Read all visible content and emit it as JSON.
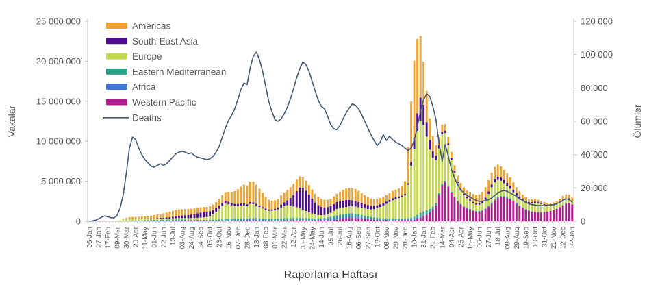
{
  "chart_data": {
    "type": "bar",
    "subtype": "stacked-weekly-bars-with-deaths-line-overlay",
    "title": "",
    "xlabel": "Raporlama Haftası",
    "ylabel_left": "Vakalar",
    "ylabel_right": "Ölümler",
    "x_resolution": "weekly",
    "week_count": 157,
    "x_first_week": "06-Jan-2020",
    "x_last_week": "02-Jan-2023",
    "x_tick_every_n_weeks": 3,
    "x_tick_labels": [
      "06-Jan",
      "27-Jan",
      "17-Feb",
      "09-Mar",
      "30-Mar",
      "20-Apr",
      "11-May",
      "01-Jun",
      "22-Jun",
      "13-Jul",
      "03-Aug",
      "24-Aug",
      "14-Sep",
      "05-Oct",
      "26-Oct",
      "16-Nov",
      "07-Dec",
      "28-Dec",
      "18-Jan",
      "08-Feb",
      "01-Mar",
      "22-Mar",
      "12-Apr",
      "03-May",
      "24-May",
      "14-Jun",
      "05-Jul",
      "26-Jul",
      "16-Aug",
      "06-Sep",
      "27-Sep",
      "18-Oct",
      "08-Nov",
      "29-Nov",
      "20-Dec",
      "10-Jan",
      "31-Jan",
      "21-Feb",
      "14-Mar",
      "04-Apr",
      "25-Apr",
      "16-May",
      "06-Jun",
      "27-Jun",
      "18-Jul",
      "08-Aug",
      "29-Aug",
      "19-Sep",
      "10-Oct",
      "31-Oct",
      "21-Nov",
      "12-Dec",
      "02-Jan"
    ],
    "y_left": {
      "min": 0,
      "max": 25000000,
      "tick_step": 5000000,
      "tick_labels": [
        "0",
        "5 000 000",
        "10 000 000",
        "15 000 000",
        "20 000 000",
        "25 000 000"
      ]
    },
    "y_right": {
      "min": 0,
      "max": 120000,
      "tick_step": 20000,
      "tick_labels": [
        "0",
        "20 000",
        "40 000",
        "60 000",
        "80 000",
        "100 000",
        "120 000"
      ]
    },
    "cases_unit": "millions of weekly reported cases",
    "deaths_unit": "thousands of weekly reported deaths",
    "stack_order_bottom_to_top": [
      "Western Pacific",
      "Africa",
      "Eastern Mediterranean",
      "Europe",
      "South-East Asia",
      "Americas"
    ],
    "grid": "off",
    "colors": {
      "axis_line": "#C0C0C0",
      "tick_text": "#595959"
    },
    "series": [
      {
        "name": "Americas",
        "color": "#F0A230",
        "values": [
          0,
          0,
          0,
          0.001,
          0.001,
          0.001,
          0.001,
          0.001,
          0.002,
          0.005,
          0.02,
          0.08,
          0.13,
          0.2,
          0.23,
          0.25,
          0.27,
          0.28,
          0.3,
          0.33,
          0.36,
          0.4,
          0.45,
          0.5,
          0.55,
          0.6,
          0.68,
          0.75,
          0.8,
          0.82,
          0.8,
          0.78,
          0.74,
          0.72,
          0.7,
          0.68,
          0.66,
          0.65,
          0.65,
          0.66,
          0.7,
          0.75,
          0.85,
          0.95,
          1.1,
          1.25,
          1.4,
          1.6,
          1.85,
          2.1,
          2.35,
          2.35,
          2.55,
          2.6,
          2.4,
          2.1,
          1.8,
          1.45,
          1.2,
          1.1,
          1.05,
          1.05,
          1.15,
          1.2,
          1.3,
          1.35,
          1.4,
          1.45,
          1.4,
          1.35,
          1.25,
          1.2,
          1.15,
          1.1,
          1.05,
          1.0,
          0.95,
          0.9,
          0.9,
          0.95,
          1.05,
          1.2,
          1.35,
          1.45,
          1.5,
          1.55,
          1.5,
          1.4,
          1.25,
          1.1,
          1.0,
          0.9,
          0.85,
          0.8,
          0.78,
          0.78,
          0.8,
          0.85,
          0.9,
          0.95,
          1.0,
          1.15,
          1.6,
          4.5,
          7.6,
          9.7,
          9.3,
          7.7,
          5.4,
          3.9,
          2.7,
          1.9,
          1.3,
          1.0,
          0.9,
          0.85,
          0.8,
          0.75,
          0.72,
          0.72,
          0.75,
          0.8,
          0.85,
          0.95,
          1.0,
          1.05,
          1.1,
          1.2,
          1.3,
          1.4,
          1.5,
          1.55,
          1.5,
          1.4,
          1.3,
          1.2,
          1.05,
          0.9,
          0.75,
          0.65,
          0.55,
          0.45,
          0.4,
          0.35,
          0.33,
          0.3,
          0.28,
          0.27,
          0.27,
          0.28,
          0.3,
          0.33,
          0.38,
          0.45,
          0.5,
          0.45,
          0.4
        ]
      },
      {
        "name": "South-East Asia",
        "color": "#500C8F",
        "values": [
          0,
          0,
          0,
          0,
          0,
          0,
          0,
          0,
          0,
          0,
          0,
          0.005,
          0.01,
          0.015,
          0.02,
          0.03,
          0.04,
          0.05,
          0.06,
          0.07,
          0.08,
          0.09,
          0.1,
          0.12,
          0.13,
          0.15,
          0.17,
          0.2,
          0.23,
          0.27,
          0.32,
          0.36,
          0.4,
          0.45,
          0.5,
          0.57,
          0.62,
          0.63,
          0.6,
          0.56,
          0.5,
          0.45,
          0.4,
          0.37,
          0.35,
          0.32,
          0.3,
          0.28,
          0.26,
          0.25,
          0.24,
          0.23,
          0.22,
          0.21,
          0.2,
          0.19,
          0.18,
          0.17,
          0.17,
          0.18,
          0.2,
          0.24,
          0.35,
          0.45,
          0.62,
          0.95,
          1.4,
          2.0,
          2.6,
          2.75,
          2.55,
          2.2,
          1.85,
          1.5,
          1.25,
          1.05,
          0.95,
          0.9,
          0.85,
          0.85,
          0.85,
          0.85,
          0.85,
          0.85,
          0.8,
          0.75,
          0.7,
          0.65,
          0.6,
          0.55,
          0.5,
          0.45,
          0.4,
          0.37,
          0.34,
          0.31,
          0.28,
          0.26,
          0.24,
          0.22,
          0.2,
          0.18,
          0.17,
          0.2,
          0.45,
          1.3,
          2.2,
          2.9,
          2.5,
          1.8,
          1.2,
          0.8,
          0.55,
          0.4,
          0.3,
          0.25,
          0.22,
          0.2,
          0.18,
          0.17,
          0.16,
          0.15,
          0.15,
          0.14,
          0.14,
          0.15,
          0.17,
          0.2,
          0.25,
          0.3,
          0.35,
          0.38,
          0.4,
          0.4,
          0.4,
          0.38,
          0.35,
          0.32,
          0.3,
          0.28,
          0.25,
          0.22,
          0.2,
          0.18,
          0.16,
          0.14,
          0.12,
          0.1,
          0.09,
          0.08,
          0.07,
          0.06,
          0.05,
          0.05,
          0.04,
          0.04,
          0.03
        ]
      },
      {
        "name": "Europe",
        "color": "#C2D64F",
        "values": [
          0,
          0,
          0,
          0,
          0,
          0,
          0,
          0,
          0.01,
          0.04,
          0.08,
          0.18,
          0.22,
          0.25,
          0.22,
          0.2,
          0.18,
          0.16,
          0.15,
          0.14,
          0.13,
          0.12,
          0.12,
          0.12,
          0.12,
          0.13,
          0.13,
          0.14,
          0.15,
          0.16,
          0.17,
          0.18,
          0.19,
          0.2,
          0.22,
          0.25,
          0.28,
          0.32,
          0.36,
          0.5,
          0.7,
          1.0,
          1.35,
          1.7,
          1.95,
          1.85,
          1.7,
          1.6,
          1.6,
          1.65,
          1.65,
          1.55,
          1.8,
          1.75,
          1.6,
          1.45,
          1.3,
          1.15,
          1.05,
          1.05,
          1.1,
          1.2,
          1.4,
          1.55,
          1.6,
          1.55,
          1.45,
          1.35,
          1.2,
          1.05,
          0.9,
          0.75,
          0.6,
          0.5,
          0.42,
          0.38,
          0.37,
          0.4,
          0.5,
          0.65,
          0.8,
          0.85,
          0.85,
          0.85,
          0.85,
          0.88,
          0.9,
          0.9,
          0.9,
          0.9,
          0.92,
          0.95,
          1.05,
          1.2,
          1.4,
          1.6,
          1.85,
          2.1,
          2.35,
          2.5,
          2.6,
          2.7,
          2.9,
          4.2,
          6.5,
          8.5,
          10.5,
          11.5,
          10.8,
          9.2,
          7.4,
          6.1,
          5.4,
          5.6,
          6.2,
          6.0,
          5.1,
          4.0,
          3.0,
          2.2,
          1.7,
          1.4,
          1.2,
          1.05,
          0.9,
          0.8,
          0.8,
          0.9,
          1.1,
          1.5,
          1.9,
          2.1,
          2.1,
          1.9,
          1.6,
          1.4,
          1.2,
          1.0,
          0.9,
          0.85,
          0.8,
          0.8,
          0.85,
          0.95,
          1.1,
          1.1,
          1.0,
          0.85,
          0.7,
          0.6,
          0.55,
          0.55,
          0.6,
          0.65,
          0.6,
          0.5,
          0.4
        ]
      },
      {
        "name": "Eastern Mediterranean",
        "color": "#29A385",
        "values": [
          0,
          0,
          0,
          0,
          0,
          0,
          0,
          0,
          0.005,
          0.01,
          0.015,
          0.02,
          0.03,
          0.04,
          0.05,
          0.06,
          0.07,
          0.08,
          0.09,
          0.1,
          0.11,
          0.12,
          0.13,
          0.13,
          0.13,
          0.12,
          0.11,
          0.1,
          0.09,
          0.09,
          0.09,
          0.09,
          0.09,
          0.1,
          0.1,
          0.11,
          0.12,
          0.12,
          0.12,
          0.12,
          0.13,
          0.14,
          0.15,
          0.16,
          0.17,
          0.18,
          0.19,
          0.18,
          0.17,
          0.16,
          0.15,
          0.14,
          0.14,
          0.14,
          0.14,
          0.13,
          0.13,
          0.13,
          0.14,
          0.15,
          0.17,
          0.19,
          0.22,
          0.26,
          0.28,
          0.29,
          0.29,
          0.28,
          0.27,
          0.25,
          0.23,
          0.21,
          0.19,
          0.17,
          0.16,
          0.15,
          0.15,
          0.16,
          0.18,
          0.21,
          0.25,
          0.29,
          0.32,
          0.35,
          0.37,
          0.36,
          0.34,
          0.32,
          0.3,
          0.28,
          0.26,
          0.24,
          0.22,
          0.2,
          0.18,
          0.17,
          0.16,
          0.15,
          0.14,
          0.13,
          0.12,
          0.11,
          0.1,
          0.1,
          0.12,
          0.2,
          0.35,
          0.5,
          0.55,
          0.5,
          0.4,
          0.3,
          0.22,
          0.17,
          0.14,
          0.12,
          0.1,
          0.08,
          0.07,
          0.06,
          0.05,
          0.04,
          0.04,
          0.04,
          0.04,
          0.04,
          0.04,
          0.05,
          0.06,
          0.08,
          0.1,
          0.12,
          0.13,
          0.13,
          0.12,
          0.11,
          0.1,
          0.09,
          0.08,
          0.07,
          0.06,
          0.05,
          0.04,
          0.04,
          0.03,
          0.03,
          0.03,
          0.03,
          0.03,
          0.03,
          0.03,
          0.03,
          0.03,
          0.03,
          0.03,
          0.02,
          0.02
        ]
      },
      {
        "name": "Africa",
        "color": "#3E75D6",
        "values": [
          0,
          0,
          0,
          0,
          0,
          0,
          0,
          0,
          0,
          0,
          0,
          0.005,
          0.005,
          0.007,
          0.01,
          0.012,
          0.015,
          0.018,
          0.02,
          0.025,
          0.03,
          0.035,
          0.04,
          0.05,
          0.055,
          0.06,
          0.07,
          0.08,
          0.09,
          0.09,
          0.08,
          0.07,
          0.06,
          0.05,
          0.04,
          0.035,
          0.03,
          0.03,
          0.03,
          0.03,
          0.03,
          0.03,
          0.035,
          0.04,
          0.045,
          0.05,
          0.055,
          0.07,
          0.09,
          0.11,
          0.13,
          0.15,
          0.17,
          0.18,
          0.16,
          0.14,
          0.11,
          0.09,
          0.07,
          0.06,
          0.055,
          0.05,
          0.05,
          0.05,
          0.05,
          0.05,
          0.05,
          0.05,
          0.05,
          0.05,
          0.05,
          0.06,
          0.07,
          0.08,
          0.1,
          0.13,
          0.17,
          0.21,
          0.25,
          0.28,
          0.3,
          0.28,
          0.26,
          0.25,
          0.24,
          0.22,
          0.2,
          0.17,
          0.15,
          0.13,
          0.11,
          0.09,
          0.07,
          0.06,
          0.05,
          0.05,
          0.05,
          0.05,
          0.05,
          0.06,
          0.08,
          0.11,
          0.14,
          0.16,
          0.18,
          0.17,
          0.15,
          0.12,
          0.1,
          0.08,
          0.06,
          0.05,
          0.04,
          0.04,
          0.035,
          0.03,
          0.03,
          0.03,
          0.03,
          0.03,
          0.03,
          0.03,
          0.04,
          0.05,
          0.05,
          0.05,
          0.05,
          0.05,
          0.05,
          0.05,
          0.05,
          0.05,
          0.04,
          0.04,
          0.04,
          0.03,
          0.03,
          0.03,
          0.03,
          0.02,
          0.02,
          0.02,
          0.02,
          0.02,
          0.02,
          0.02,
          0.02,
          0.01,
          0.01,
          0.01,
          0.01,
          0.01,
          0.01,
          0.01,
          0.01,
          0.01,
          0.01
        ]
      },
      {
        "name": "Western Pacific",
        "color": "#B21B8D",
        "values": [
          0.003,
          0.005,
          0.015,
          0.03,
          0.025,
          0.03,
          0.015,
          0.01,
          0.012,
          0.02,
          0.015,
          0.01,
          0.01,
          0.008,
          0.006,
          0.005,
          0.005,
          0.005,
          0.006,
          0.007,
          0.008,
          0.01,
          0.012,
          0.015,
          0.02,
          0.025,
          0.03,
          0.04,
          0.05,
          0.055,
          0.06,
          0.06,
          0.055,
          0.05,
          0.045,
          0.04,
          0.035,
          0.03,
          0.03,
          0.03,
          0.03,
          0.03,
          0.03,
          0.03,
          0.035,
          0.04,
          0.04,
          0.045,
          0.05,
          0.055,
          0.06,
          0.06,
          0.07,
          0.08,
          0.08,
          0.07,
          0.06,
          0.05,
          0.05,
          0.05,
          0.05,
          0.055,
          0.06,
          0.065,
          0.07,
          0.075,
          0.08,
          0.085,
          0.09,
          0.1,
          0.1,
          0.11,
          0.11,
          0.1,
          0.1,
          0.1,
          0.1,
          0.11,
          0.13,
          0.16,
          0.2,
          0.25,
          0.3,
          0.35,
          0.4,
          0.42,
          0.4,
          0.37,
          0.33,
          0.29,
          0.25,
          0.22,
          0.19,
          0.17,
          0.15,
          0.14,
          0.13,
          0.12,
          0.11,
          0.1,
          0.1,
          0.1,
          0.1,
          0.11,
          0.14,
          0.2,
          0.3,
          0.45,
          0.6,
          0.8,
          1.1,
          1.5,
          2.0,
          3.3,
          4.5,
          4.9,
          4.3,
          3.6,
          3.0,
          2.5,
          2.1,
          1.8,
          1.6,
          1.45,
          1.3,
          1.2,
          1.2,
          1.3,
          1.5,
          1.8,
          2.2,
          2.6,
          2.9,
          3.0,
          3.0,
          2.9,
          2.75,
          2.5,
          2.2,
          1.9,
          1.65,
          1.45,
          1.3,
          1.2,
          1.15,
          1.1,
          1.1,
          1.15,
          1.2,
          1.3,
          1.4,
          1.55,
          1.75,
          2.0,
          2.2,
          2.3,
          2.1
        ]
      }
    ],
    "line_series": {
      "name": "Deaths",
      "color": "#425877",
      "values": [
        0.1,
        0.2,
        0.6,
        1.5,
        2.5,
        3.2,
        2.8,
        2.2,
        2.0,
        3.5,
        8,
        16,
        29,
        44,
        50.5,
        49,
        44,
        40,
        37,
        35,
        33,
        32.5,
        33.5,
        34.5,
        33.5,
        34.5,
        36.5,
        38.5,
        40.5,
        41.5,
        42,
        41.5,
        40.5,
        41,
        39.5,
        38.5,
        38,
        37.5,
        37,
        37.5,
        39,
        41.5,
        45,
        50.5,
        56,
        60.5,
        63.5,
        67.5,
        73,
        79,
        83,
        82,
        92,
        99,
        101.5,
        97,
        90,
        81,
        72,
        66,
        61,
        60,
        61.5,
        64.5,
        68.5,
        73.5,
        79.5,
        86,
        91.5,
        95.5,
        94,
        90,
        84,
        78,
        72.5,
        69,
        67.5,
        63,
        58,
        55.5,
        55,
        57.5,
        61.5,
        65,
        68,
        70.5,
        69.5,
        67.5,
        64,
        60,
        56,
        52,
        48.5,
        45.5,
        47.5,
        52,
        48.5,
        51,
        49,
        47.5,
        46.5,
        45.5,
        44,
        42.5,
        44,
        48.5,
        57,
        66,
        73,
        76.5,
        75,
        69,
        61,
        47,
        36,
        46,
        39,
        31,
        26,
        22,
        19,
        17,
        15.5,
        14.5,
        13.5,
        12.5,
        12,
        12,
        12.5,
        13,
        14,
        15.5,
        17,
        18,
        18.5,
        18,
        17,
        16,
        15,
        13.5,
        12.5,
        11.5,
        10.5,
        10,
        9.7,
        9.5,
        9.4,
        9.5,
        9.7,
        9.8,
        10,
        10.5,
        11.5,
        12.5,
        13.5,
        13,
        11.5
      ]
    },
    "legend": {
      "position": "top-left-inside",
      "entries": [
        "Americas",
        "South-East Asia",
        "Europe",
        "Eastern Mediterranean",
        "Africa",
        "Western Pacific",
        "Deaths"
      ]
    }
  }
}
